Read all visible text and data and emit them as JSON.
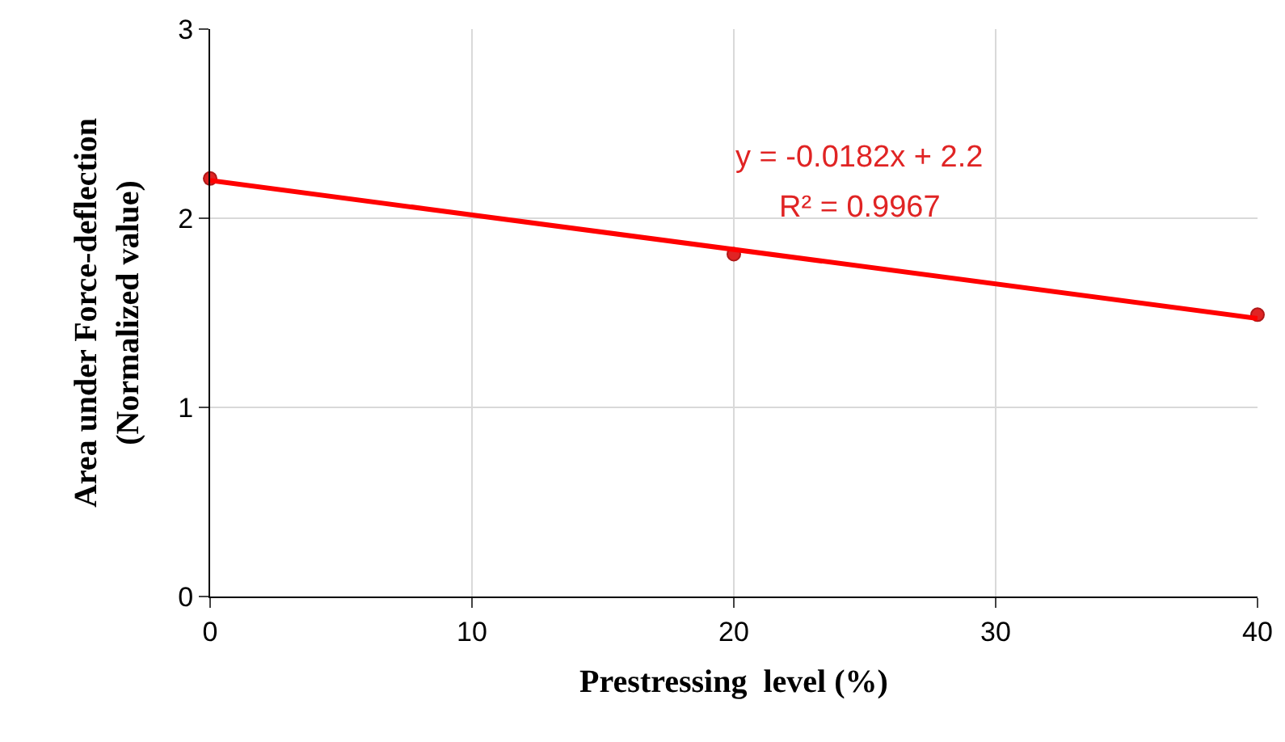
{
  "chart_data": {
    "type": "scatter",
    "xlabel": "Prestressing  level (%)",
    "ylabel": "Area under Force-deflection\n(Normalized value)",
    "x": [
      0,
      20,
      40
    ],
    "series": [
      {
        "color": "#e02424",
        "values": [
          2.21,
          1.81,
          1.49
        ],
        "marker": "circle"
      },
      {
        "type": "line",
        "color": "#ff0000",
        "x": [
          0,
          40
        ],
        "values": [
          2.2,
          1.47
        ],
        "marker": "none"
      }
    ],
    "annotations": [
      "y = -0.0182x + 2.2",
      "R² = 0.9967"
    ],
    "xlim": [
      0,
      40
    ],
    "xticks": [
      0,
      10,
      20,
      30,
      40
    ],
    "ylim": [
      0,
      3
    ],
    "yticks": [
      0,
      1,
      2,
      3
    ],
    "grid": true
  }
}
